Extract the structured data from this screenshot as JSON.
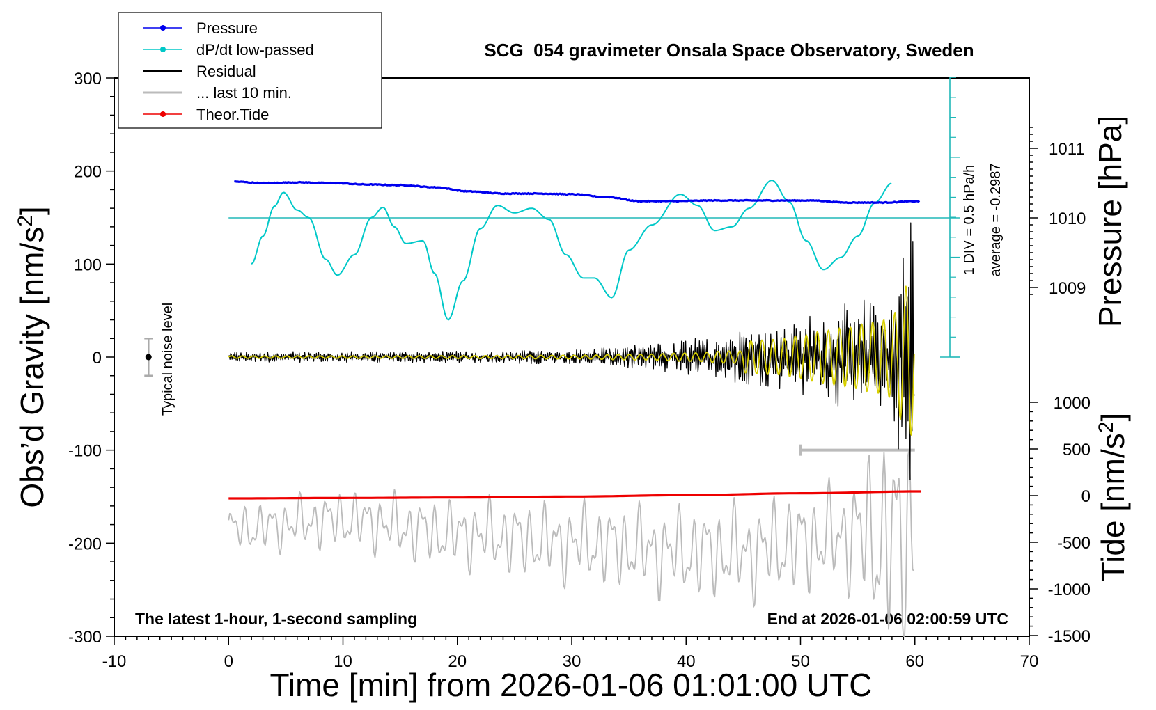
{
  "chart_data": {
    "type": "line",
    "title": "SCG_054 gravimeter Onsala Space Observatory, Sweden",
    "xlabel": "Time [min] from 2026-01-06 01:01:00 UTC",
    "ylabel_left": "Obs'd Gravity [nm/s²]",
    "ylabel_right_top": "Pressure [hPa]",
    "ylabel_right_bottom": "Tide [nm/s²]",
    "xlim": [
      -10,
      70
    ],
    "ylim": [
      -300,
      300
    ],
    "x_ticks": [
      "-10",
      "0",
      "10",
      "20",
      "30",
      "40",
      "50",
      "60",
      "70"
    ],
    "y_ticks": [
      "-300",
      "-200",
      "-100",
      "0",
      "100",
      "200",
      "300"
    ],
    "pressure_ticks": [
      "1009",
      "1010",
      "1011"
    ],
    "tide_ticks": [
      "-1500",
      "-1000",
      "-500",
      "0",
      "500",
      "1000"
    ],
    "notes": {
      "bottom_left": "The latest 1-hour, 1-second sampling",
      "bottom_right": "End at 2026-01-06 02:00:59 UTC",
      "noise": "Typical noise level",
      "div": "1 DIV = 0.5 hPa/h",
      "average": "average = -0.2987"
    },
    "legend_position": "top-left",
    "legend": [
      {
        "name": "Pressure",
        "color": "#0000ee",
        "marker": true
      },
      {
        "name": "dP/dt low-passed",
        "color": "#00c8c8",
        "marker": true
      },
      {
        "name": "Residual",
        "color": "#000000",
        "marker": false
      },
      {
        "name": "... last 10 min.",
        "color": "#bbbbbb",
        "marker": false
      },
      {
        "name": "Theor.Tide",
        "color": "#ee0000",
        "marker": true
      }
    ],
    "series": [
      {
        "name": "Pressure",
        "axis": "pressure_hPa",
        "color": "#0000ee",
        "x": [
          0.5,
          3,
          6,
          9,
          12,
          15,
          18,
          21,
          24,
          27,
          30,
          33,
          36,
          39,
          42,
          45,
          48,
          51,
          54,
          57,
          60.5
        ],
        "y": [
          1010.52,
          1010.5,
          1010.51,
          1010.5,
          1010.48,
          1010.47,
          1010.44,
          1010.38,
          1010.35,
          1010.35,
          1010.34,
          1010.3,
          1010.24,
          1010.24,
          1010.25,
          1010.25,
          1010.25,
          1010.25,
          1010.22,
          1010.22,
          1010.24
        ]
      },
      {
        "name": "dP/dt low-passed",
        "axis": "gravity_nm_s2",
        "color": "#00c8c8",
        "x": [
          2,
          3,
          4,
          4.8,
          6,
          7,
          8.5,
          9.5,
          11,
          12.5,
          13.5,
          14.5,
          15.5,
          17,
          18,
          19.2,
          20.5,
          22,
          23.5,
          25,
          26.5,
          28,
          29.5,
          31,
          32,
          33.5,
          35,
          37,
          39.5,
          41,
          42.5,
          44,
          45.5,
          47.5,
          49,
          50.5,
          52,
          53.5,
          55,
          56.5,
          58
        ],
        "y": [
          100,
          130,
          162,
          177,
          158,
          150,
          105,
          88,
          110,
          150,
          161,
          140,
          122,
          125,
          90,
          40,
          82,
          138,
          163,
          155,
          160,
          148,
          110,
          85,
          85,
          64,
          115,
          142,
          175,
          163,
          136,
          140,
          160,
          190,
          167,
          125,
          94,
          107,
          130,
          166,
          187
        ]
      },
      {
        "name": "Residual",
        "axis": "gravity_nm_s2",
        "color": "#000000",
        "x": [
          0,
          10,
          20,
          30,
          36,
          40,
          44,
          48,
          50,
          52,
          54,
          56,
          57,
          58,
          59,
          59.6,
          60
        ],
        "y": [
          6,
          6,
          7,
          9,
          14,
          20,
          30,
          35,
          42,
          52,
          58,
          68,
          72,
          80,
          130,
          160,
          110
        ],
        "note": "oscillation envelope half-amplitude"
      },
      {
        "name": "... last 10 min.",
        "axis": "gravity_nm_s2",
        "color": "#bbbbbb",
        "x": [
          0,
          10,
          20,
          30,
          40,
          45,
          50,
          55,
          58,
          60
        ],
        "y": [
          -185,
          -175,
          -190,
          -200,
          -210,
          -210,
          -200,
          -190,
          -200,
          -185
        ],
        "note": "60-second traces centred near -200, peaks from -130 to -300"
      },
      {
        "name": "Theor.Tide",
        "axis": "tide_nm_s2",
        "color": "#ee0000",
        "x": [
          0,
          10,
          20,
          30,
          40,
          50,
          60.5
        ],
        "y": [
          -30,
          -25,
          -20,
          -10,
          5,
          25,
          45
        ]
      }
    ],
    "yellow_trace_note": "Yellow overlay is a smoothed residual, same x range as Residual",
    "noise_level": {
      "x": -7,
      "y": 0,
      "half_range": 20
    },
    "last10_bar": {
      "x": [
        50,
        60
      ],
      "y": -100
    }
  }
}
